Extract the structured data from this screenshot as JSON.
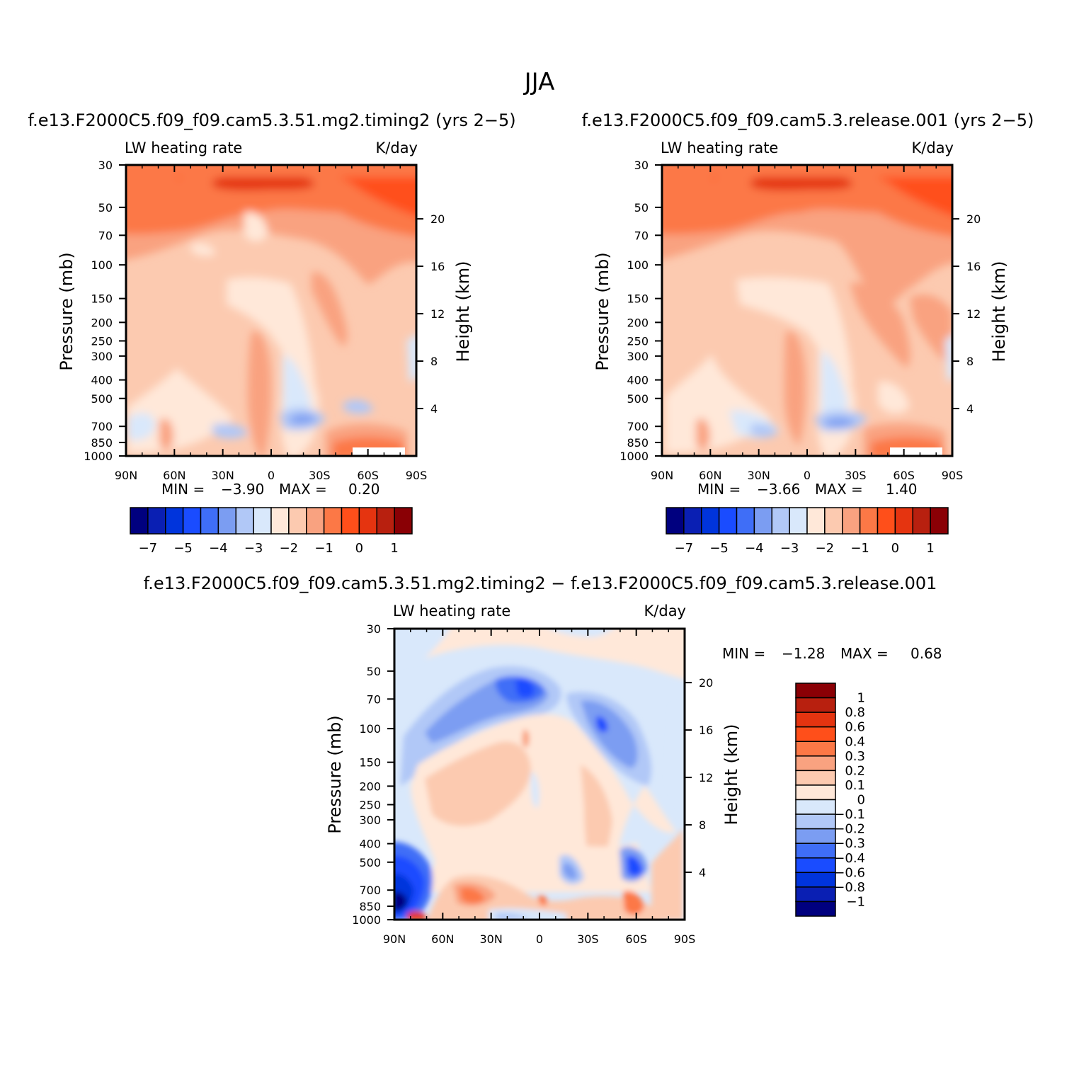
{
  "figure": {
    "main_title": "JJA"
  },
  "colors": {
    "bar_scale": [
      "#00007f",
      "#0a1fb3",
      "#0034dc",
      "#1a4cff",
      "#3f6ef7",
      "#7b9df2",
      "#b1c8f7",
      "#d9e8fb",
      "#ffe8d9",
      "#fccab0",
      "#f9a280",
      "#fc7846",
      "#ff4f1a",
      "#e53410",
      "#b8200f",
      "#8a0005"
    ],
    "diff_scale": [
      "#00007f",
      "#0a1fb3",
      "#0034dc",
      "#1a4cff",
      "#3f6ef7",
      "#7b9df2",
      "#b1c8f7",
      "#d9e8fb",
      "#ffe8d9",
      "#fccab0",
      "#f9a280",
      "#fc7846",
      "#ff4f1a",
      "#e53410",
      "#b8200f",
      "#8a0005"
    ]
  },
  "chart_data": [
    {
      "type": "heatmap",
      "id": "panel1",
      "title": "f.e13.F2000C5.f09_f09.cam5.3.51.mg2.timing2 (yrs 2−5)",
      "variable_label": "LW heating rate",
      "units_label": "K/day",
      "xlabel": "",
      "ylabel": "Pressure (mb)",
      "ylabel_right": "Height (km)",
      "x_ticks": [
        "90N",
        "60N",
        "30N",
        "0",
        "30S",
        "60S",
        "90S"
      ],
      "y_ticks": [
        "30",
        "50",
        "70",
        "100",
        "150",
        "200",
        "250",
        "300",
        "400",
        "500",
        "700",
        "850",
        "1000"
      ],
      "y_ticks_right": [
        "20",
        "16",
        "12",
        "8",
        "4"
      ],
      "ylim": [
        1000,
        30
      ],
      "y_scale": "log",
      "min_label": "MIN =",
      "min_value": "−3.90",
      "max_label": "MAX =",
      "max_value": "0.20",
      "colorbar_labels": [
        "−7",
        "−5",
        "−4",
        "−3",
        "−2",
        "−1",
        "0",
        "1"
      ]
    },
    {
      "type": "heatmap",
      "id": "panel2",
      "title": "f.e13.F2000C5.f09_f09.cam5.3.release.001 (yrs 2−5)",
      "variable_label": "LW heating rate",
      "units_label": "K/day",
      "xlabel": "",
      "ylabel": "Pressure (mb)",
      "ylabel_right": "Height (km)",
      "x_ticks": [
        "90N",
        "60N",
        "30N",
        "0",
        "30S",
        "60S",
        "90S"
      ],
      "y_ticks": [
        "30",
        "50",
        "70",
        "100",
        "150",
        "200",
        "250",
        "300",
        "400",
        "500",
        "700",
        "850",
        "1000"
      ],
      "y_ticks_right": [
        "20",
        "16",
        "12",
        "8",
        "4"
      ],
      "ylim": [
        1000,
        30
      ],
      "y_scale": "log",
      "min_label": "MIN =",
      "min_value": "−3.66",
      "max_label": "MAX =",
      "max_value": "1.40",
      "colorbar_labels": [
        "−7",
        "−5",
        "−4",
        "−3",
        "−2",
        "−1",
        "0",
        "1"
      ]
    },
    {
      "type": "heatmap",
      "id": "panel3",
      "title": "f.e13.F2000C5.f09_f09.cam5.3.51.mg2.timing2 − f.e13.F2000C5.f09_f09.cam5.3.release.001",
      "variable_label": "LW heating rate",
      "units_label": "K/day",
      "xlabel": "",
      "ylabel": "Pressure (mb)",
      "ylabel_right": "Height (km)",
      "x_ticks": [
        "90N",
        "60N",
        "30N",
        "0",
        "30S",
        "60S",
        "90S"
      ],
      "y_ticks": [
        "30",
        "50",
        "70",
        "100",
        "150",
        "200",
        "250",
        "300",
        "400",
        "500",
        "700",
        "850",
        "1000"
      ],
      "y_ticks_right": [
        "20",
        "16",
        "12",
        "8",
        "4"
      ],
      "ylim": [
        1000,
        30
      ],
      "y_scale": "log",
      "min_label": "MIN =",
      "min_value": "−1.28",
      "max_label": "MAX =",
      "max_value": "0.68",
      "colorbar_labels": [
        "1",
        "0.8",
        "0.6",
        "0.4",
        "0.3",
        "0.2",
        "0.1",
        "0",
        "−0.1",
        "−0.2",
        "−0.3",
        "−0.4",
        "−0.6",
        "−0.8",
        "−1"
      ]
    }
  ]
}
